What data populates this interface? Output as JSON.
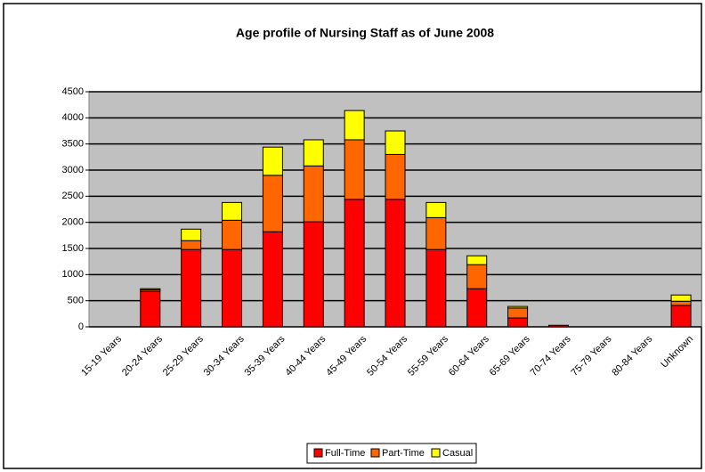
{
  "chart_data": {
    "type": "stacked_bar",
    "title": "Age profile of Nursing Staff as of June 2008",
    "categories": [
      "15-19 Years",
      "20-24 Years",
      "25-29 Years",
      "30-34 Years",
      "35-39 Years",
      "40-44 Years",
      "45-49 Years",
      "50-54 Years",
      "55-59 Years",
      "60-64 Years",
      "65-69 Years",
      "70-74 Years",
      "75-79 Years",
      "80-84 Years",
      "Unknown"
    ],
    "series": [
      {
        "name": "Full-Time",
        "color": "#ff0000",
        "values": [
          0,
          680,
          1480,
          1480,
          1820,
          2010,
          2440,
          2440,
          1480,
          730,
          170,
          30,
          0,
          0,
          410
        ]
      },
      {
        "name": "Part-Time",
        "color": "#ff6600",
        "values": [
          0,
          30,
          170,
          560,
          1080,
          1070,
          1140,
          860,
          610,
          460,
          190,
          0,
          0,
          0,
          80
        ]
      },
      {
        "name": "Casual",
        "color": "#ffff00",
        "values": [
          0,
          20,
          220,
          340,
          540,
          500,
          560,
          450,
          290,
          170,
          30,
          0,
          0,
          0,
          120
        ]
      }
    ],
    "ylim": [
      0,
      4500
    ],
    "yticks": [
      0,
      500,
      1000,
      1500,
      2000,
      2500,
      3000,
      3500,
      4000,
      4500
    ],
    "grid": true,
    "legend": "bottom"
  }
}
